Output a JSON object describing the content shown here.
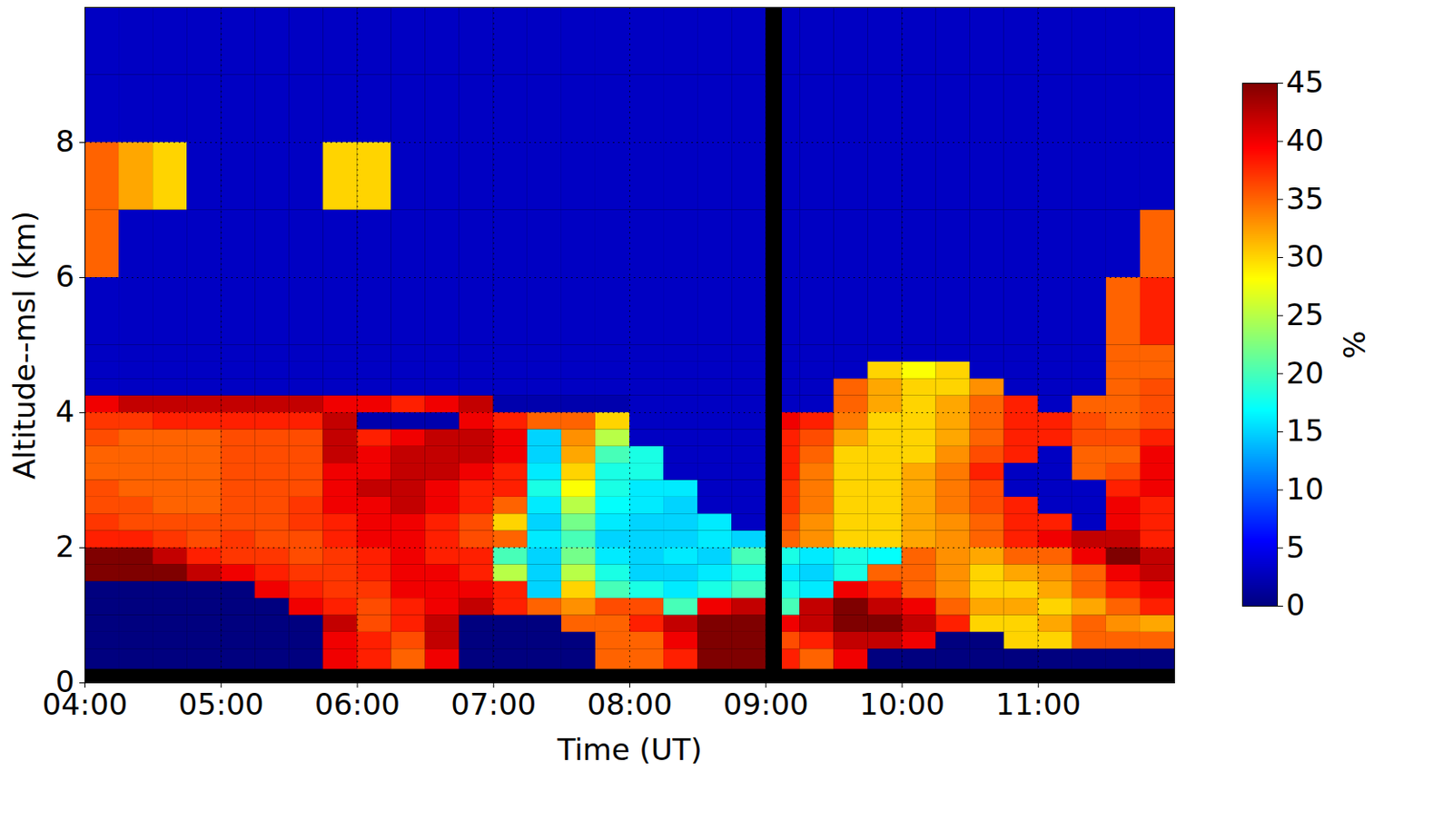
{
  "chart_data": {
    "type": "heatmap",
    "x_label": "Time (UT)",
    "y_label": "Altitude--msl (km)",
    "xlim": [
      4,
      12
    ],
    "xticks": [
      {
        "value": 4,
        "label": "04:00"
      },
      {
        "value": 5,
        "label": "05:00"
      },
      {
        "value": 6,
        "label": "06:00"
      },
      {
        "value": 7,
        "label": "07:00"
      },
      {
        "value": 8,
        "label": "08:00"
      },
      {
        "value": 9,
        "label": "09:00"
      },
      {
        "value": 10,
        "label": "10:00"
      },
      {
        "value": 11,
        "label": "11:00"
      }
    ],
    "ylim": [
      0,
      10
    ],
    "yticks": [
      0,
      2,
      4,
      6,
      8
    ],
    "grid": true,
    "x_edges": [
      4,
      4.25,
      4.5,
      4.75,
      5,
      5.25,
      5.5,
      5.75,
      6,
      6.25,
      6.5,
      6.75,
      7,
      7.25,
      7.5,
      7.75,
      8,
      8.25,
      8.5,
      8.75,
      9,
      9.12,
      9.25,
      9.5,
      9.75,
      10,
      10.25,
      10.5,
      10.75,
      11,
      11.25,
      11.5,
      11.75,
      12
    ],
    "y_edges": [
      0,
      0.2,
      0.5,
      0.75,
      1,
      1.25,
      1.5,
      1.75,
      2,
      2.25,
      2.5,
      2.75,
      3,
      3.25,
      3.5,
      3.75,
      4,
      4.25,
      4.5,
      4.75,
      5,
      6,
      7,
      8,
      9,
      10
    ],
    "cells": [
      [
        null,
        null,
        null,
        null,
        null,
        null,
        null,
        null,
        null,
        null,
        null,
        null,
        null,
        null,
        null,
        null,
        null,
        null,
        null,
        null,
        null,
        null,
        null,
        null,
        null,
        null,
        null,
        null,
        null,
        null,
        null,
        null,
        null
      ],
      [
        0,
        0,
        0,
        0,
        0,
        0,
        0,
        40,
        38,
        35,
        40,
        0,
        0,
        0,
        0,
        35,
        35,
        38,
        45,
        45,
        null,
        38,
        35,
        40,
        0,
        0,
        0,
        0,
        0,
        0,
        0,
        0,
        0
      ],
      [
        0,
        0,
        0,
        0,
        0,
        0,
        0,
        40,
        38,
        36,
        42,
        0,
        0,
        0,
        0,
        35,
        35,
        40,
        45,
        45,
        null,
        36,
        38,
        42,
        42,
        40,
        0,
        0,
        30,
        30,
        35,
        35,
        35
      ],
      [
        0,
        0,
        0,
        0,
        0,
        0,
        0,
        42,
        36,
        38,
        42,
        0,
        0,
        0,
        35,
        35,
        38,
        42,
        45,
        45,
        null,
        40,
        42,
        45,
        45,
        42,
        38,
        30,
        30,
        32,
        35,
        33,
        32
      ],
      [
        0,
        0,
        0,
        0,
        0,
        0,
        40,
        38,
        36,
        38,
        40,
        42,
        38,
        35,
        33,
        36,
        36,
        20,
        40,
        42,
        null,
        20,
        42,
        45,
        42,
        40,
        35,
        32,
        32,
        30,
        32,
        35,
        38
      ],
      [
        0,
        0,
        0,
        0,
        0,
        40,
        38,
        37,
        37,
        40,
        40,
        40,
        38,
        15,
        30,
        20,
        18,
        16,
        18,
        20,
        null,
        18,
        16,
        40,
        38,
        35,
        33,
        30,
        30,
        32,
        35,
        38,
        40
      ],
      [
        45,
        45,
        45,
        42,
        40,
        38,
        37,
        37,
        38,
        40,
        40,
        38,
        25,
        15,
        25,
        18,
        15,
        15,
        16,
        18,
        null,
        16,
        15,
        18,
        35,
        35,
        33,
        30,
        32,
        33,
        35,
        40,
        42
      ],
      [
        45,
        45,
        42,
        38,
        37,
        37,
        36,
        37,
        38,
        40,
        38,
        38,
        20,
        15,
        22,
        16,
        15,
        16,
        15,
        20,
        null,
        18,
        16,
        18,
        17,
        35,
        33,
        32,
        35,
        35,
        40,
        45,
        42
      ],
      [
        38,
        38,
        37,
        36,
        37,
        36,
        36,
        38,
        40,
        40,
        38,
        36,
        35,
        16,
        20,
        15,
        15,
        15,
        16,
        15,
        null,
        35,
        33,
        30,
        30,
        32,
        33,
        35,
        38,
        40,
        42,
        42,
        38
      ],
      [
        37,
        36,
        36,
        36,
        36,
        36,
        37,
        38,
        40,
        40,
        38,
        36,
        30,
        15,
        22,
        16,
        15,
        15,
        16,
        3,
        null,
        36,
        33,
        30,
        30,
        32,
        33,
        35,
        38,
        38,
        3,
        40,
        38
      ],
      [
        36,
        36,
        35,
        35,
        36,
        36,
        37,
        40,
        40,
        42,
        40,
        38,
        35,
        16,
        25,
        17,
        16,
        15,
        3,
        3,
        null,
        37,
        34,
        30,
        30,
        32,
        34,
        36,
        38,
        3,
        3,
        40,
        38
      ],
      [
        36,
        35,
        35,
        35,
        36,
        36,
        36,
        40,
        42,
        42,
        40,
        38,
        38,
        18,
        28,
        18,
        16,
        16,
        3,
        3,
        null,
        37,
        34,
        30,
        30,
        32,
        34,
        36,
        3,
        3,
        3,
        38,
        40
      ],
      [
        35,
        35,
        35,
        35,
        36,
        36,
        36,
        40,
        40,
        42,
        42,
        40,
        38,
        16,
        30,
        18,
        18,
        3,
        3,
        3,
        null,
        38,
        34,
        30,
        30,
        32,
        34,
        38,
        3,
        3,
        35,
        36,
        40
      ],
      [
        35,
        35,
        35,
        35,
        36,
        36,
        36,
        42,
        40,
        42,
        42,
        42,
        40,
        15,
        32,
        20,
        18,
        3,
        3,
        3,
        null,
        38,
        35,
        30,
        30,
        30,
        33,
        36,
        38,
        3,
        35,
        35,
        40
      ],
      [
        36,
        35,
        35,
        35,
        36,
        36,
        36,
        42,
        38,
        40,
        42,
        42,
        40,
        15,
        33,
        25,
        3,
        3,
        3,
        3,
        null,
        38,
        36,
        32,
        30,
        30,
        32,
        35,
        38,
        38,
        36,
        36,
        38
      ],
      [
        37,
        37,
        38,
        38,
        38,
        38,
        38,
        42,
        2,
        2,
        2,
        40,
        38,
        35,
        35,
        30,
        3,
        3,
        3,
        3,
        null,
        40,
        38,
        34,
        30,
        30,
        32,
        35,
        38,
        38,
        36,
        35,
        36
      ],
      [
        40,
        42,
        42,
        42,
        42,
        42,
        42,
        40,
        40,
        38,
        40,
        42,
        2,
        2,
        2,
        2,
        3,
        3,
        3,
        3,
        null,
        3,
        3,
        35,
        32,
        30,
        32,
        35,
        38,
        3,
        35,
        35,
        36
      ],
      [
        3,
        3,
        3,
        3,
        3,
        3,
        3,
        3,
        3,
        3,
        3,
        3,
        3,
        3,
        3,
        3,
        3,
        3,
        3,
        3,
        null,
        3,
        3,
        35,
        32,
        30,
        30,
        33,
        3,
        3,
        3,
        35,
        36
      ],
      [
        3,
        3,
        3,
        3,
        3,
        3,
        3,
        3,
        3,
        3,
        3,
        3,
        3,
        3,
        3,
        3,
        3,
        3,
        3,
        3,
        null,
        3,
        3,
        3,
        30,
        28,
        30,
        3,
        3,
        3,
        3,
        35,
        35
      ],
      [
        3,
        3,
        3,
        3,
        3,
        3,
        3,
        3,
        3,
        3,
        3,
        3,
        3,
        3,
        3,
        3,
        3,
        3,
        3,
        3,
        null,
        3,
        3,
        3,
        3,
        3,
        3,
        3,
        3,
        3,
        3,
        35,
        35
      ],
      [
        3,
        3,
        3,
        3,
        3,
        3,
        3,
        3,
        3,
        3,
        3,
        3,
        3,
        3,
        3,
        3,
        3,
        3,
        3,
        3,
        null,
        3,
        3,
        3,
        3,
        3,
        3,
        3,
        3,
        3,
        3,
        35,
        38
      ],
      [
        35,
        3,
        3,
        3,
        3,
        3,
        3,
        3,
        3,
        3,
        3,
        3,
        3,
        3,
        3,
        3,
        3,
        3,
        3,
        3,
        null,
        3,
        3,
        3,
        3,
        3,
        3,
        3,
        3,
        3,
        3,
        3,
        35
      ],
      [
        35,
        32,
        30,
        3,
        3,
        3,
        3,
        30,
        30,
        3,
        3,
        3,
        3,
        3,
        3,
        3,
        3,
        3,
        3,
        3,
        null,
        3,
        3,
        3,
        3,
        3,
        3,
        3,
        3,
        3,
        3,
        3,
        3
      ],
      [
        3,
        3,
        3,
        3,
        3,
        3,
        3,
        3,
        3,
        3,
        3,
        3,
        3,
        3,
        3,
        3,
        3,
        3,
        3,
        3,
        null,
        3,
        3,
        3,
        3,
        3,
        3,
        3,
        3,
        3,
        3,
        3,
        3
      ],
      [
        3,
        3,
        3,
        3,
        3,
        3,
        3,
        3,
        3,
        3,
        3,
        3,
        3,
        3,
        3,
        3,
        3,
        3,
        3,
        3,
        null,
        3,
        3,
        3,
        3,
        3,
        3,
        3,
        3,
        3,
        3,
        3,
        3
      ]
    ],
    "colorbar": {
      "label": "%",
      "range": [
        0,
        45
      ],
      "ticks": [
        0,
        5,
        10,
        15,
        20,
        25,
        30,
        35,
        40,
        45
      ]
    }
  }
}
